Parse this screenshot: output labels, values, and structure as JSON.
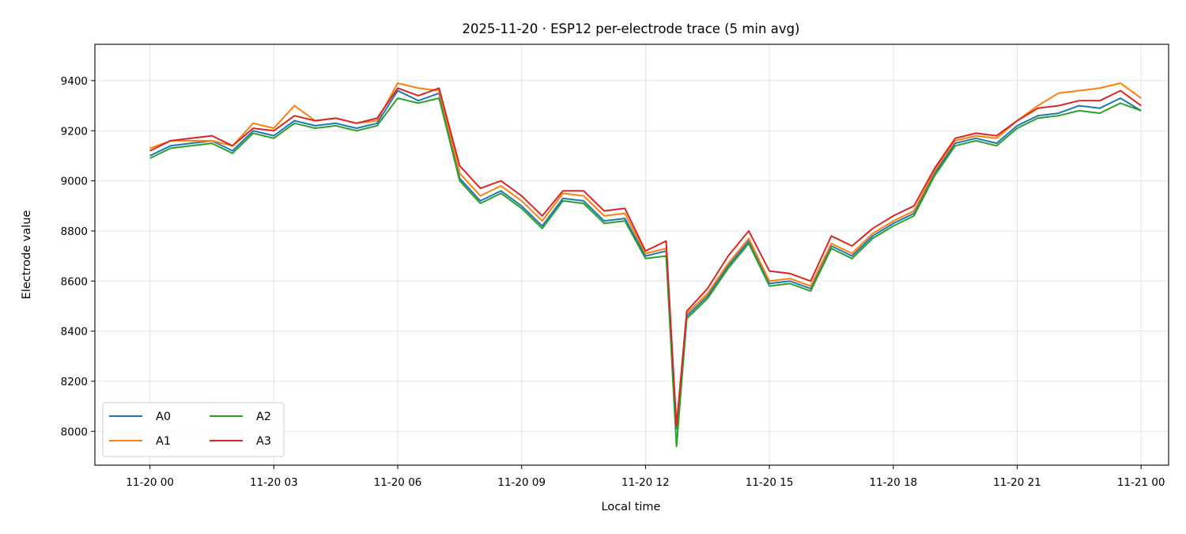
{
  "chart_data": {
    "type": "line",
    "title": "2025-11-20 · ESP12 per-electrode trace (5 min avg)",
    "xlabel": "Local time",
    "ylabel": "Electrode value",
    "xlim": [
      "2025-11-19 22:40",
      "2025-11-21 00:40"
    ],
    "ylim": [
      7865,
      9545
    ],
    "yticks": [
      8000,
      8200,
      8400,
      8600,
      8800,
      9000,
      9200,
      9400
    ],
    "xticks": [
      {
        "t": "2025-11-20 00:00",
        "label": "11-20 00"
      },
      {
        "t": "2025-11-20 03:00",
        "label": "11-20 03"
      },
      {
        "t": "2025-11-20 06:00",
        "label": "11-20 06"
      },
      {
        "t": "2025-11-20 09:00",
        "label": "11-20 09"
      },
      {
        "t": "2025-11-20 12:00",
        "label": "11-20 12"
      },
      {
        "t": "2025-11-20 15:00",
        "label": "11-20 15"
      },
      {
        "t": "2025-11-20 18:00",
        "label": "11-20 18"
      },
      {
        "t": "2025-11-20 21:00",
        "label": "11-20 21"
      },
      {
        "t": "2025-11-21 00:00",
        "label": "11-21 00"
      }
    ],
    "grid": true,
    "legend": {
      "placement": "lower-left",
      "columns": 2
    },
    "x": [
      "2025-11-20 00:00",
      "2025-11-20 00:30",
      "2025-11-20 01:00",
      "2025-11-20 01:30",
      "2025-11-20 02:00",
      "2025-11-20 02:30",
      "2025-11-20 03:00",
      "2025-11-20 03:30",
      "2025-11-20 04:00",
      "2025-11-20 04:30",
      "2025-11-20 05:00",
      "2025-11-20 05:30",
      "2025-11-20 06:00",
      "2025-11-20 06:30",
      "2025-11-20 07:00",
      "2025-11-20 07:30",
      "2025-11-20 08:00",
      "2025-11-20 08:30",
      "2025-11-20 09:00",
      "2025-11-20 09:30",
      "2025-11-20 10:00",
      "2025-11-20 10:30",
      "2025-11-20 11:00",
      "2025-11-20 11:30",
      "2025-11-20 12:00",
      "2025-11-20 12:30",
      "2025-11-20 12:45",
      "2025-11-20 13:00",
      "2025-11-20 13:30",
      "2025-11-20 14:00",
      "2025-11-20 14:30",
      "2025-11-20 15:00",
      "2025-11-20 15:30",
      "2025-11-20 16:00",
      "2025-11-20 16:30",
      "2025-11-20 17:00",
      "2025-11-20 17:30",
      "2025-11-20 18:00",
      "2025-11-20 18:30",
      "2025-11-20 19:00",
      "2025-11-20 19:30",
      "2025-11-20 20:00",
      "2025-11-20 20:30",
      "2025-11-20 21:00",
      "2025-11-20 21:30",
      "2025-11-20 22:00",
      "2025-11-20 22:30",
      "2025-11-20 23:00",
      "2025-11-20 23:30",
      "2025-11-21 00:00"
    ],
    "series": [
      {
        "name": "A0",
        "color": "#1f77b4",
        "values": [
          9100,
          9140,
          9150,
          9160,
          9120,
          9200,
          9180,
          9240,
          9220,
          9230,
          9210,
          9230,
          9360,
          9320,
          9350,
          9010,
          8920,
          8960,
          8900,
          8820,
          8930,
          8920,
          8840,
          8850,
          8700,
          8720,
          8010,
          8460,
          8540,
          8660,
          8760,
          8590,
          8600,
          8570,
          8740,
          8700,
          8780,
          8830,
          8870,
          9030,
          9150,
          9170,
          9150,
          9220,
          9260,
          9270,
          9300,
          9290,
          9330,
          9280
        ]
      },
      {
        "name": "A1",
        "color": "#ff7f0e",
        "values": [
          9130,
          9160,
          9160,
          9160,
          9140,
          9230,
          9210,
          9300,
          9240,
          9250,
          9230,
          9240,
          9390,
          9370,
          9360,
          9030,
          8940,
          8980,
          8920,
          8840,
          8950,
          8940,
          8860,
          8870,
          8710,
          8730,
          8020,
          8470,
          8550,
          8670,
          8770,
          8600,
          8610,
          8580,
          8750,
          8710,
          8790,
          8840,
          8880,
          9040,
          9160,
          9180,
          9170,
          9240,
          9300,
          9350,
          9360,
          9370,
          9390,
          9330
        ]
      },
      {
        "name": "A2",
        "color": "#2ca02c",
        "values": [
          9090,
          9130,
          9140,
          9150,
          9110,
          9190,
          9170,
          9230,
          9210,
          9220,
          9200,
          9220,
          9330,
          9310,
          9330,
          9000,
          8910,
          8950,
          8890,
          8810,
          8920,
          8910,
          8830,
          8840,
          8690,
          8700,
          7940,
          8450,
          8530,
          8650,
          8750,
          8580,
          8590,
          8560,
          8730,
          8690,
          8770,
          8820,
          8860,
          9020,
          9140,
          9160,
          9140,
          9210,
          9250,
          9260,
          9280,
          9270,
          9310,
          9280
        ]
      },
      {
        "name": "A3",
        "color": "#d62728",
        "values": [
          9120,
          9160,
          9170,
          9180,
          9140,
          9210,
          9200,
          9260,
          9240,
          9250,
          9230,
          9250,
          9370,
          9340,
          9370,
          9060,
          8970,
          9000,
          8940,
          8860,
          8960,
          8960,
          8880,
          8890,
          8720,
          8760,
          8020,
          8480,
          8570,
          8700,
          8800,
          8640,
          8630,
          8600,
          8780,
          8740,
          8810,
          8860,
          8900,
          9050,
          9170,
          9190,
          9180,
          9240,
          9290,
          9300,
          9320,
          9320,
          9360,
          9300
        ]
      }
    ]
  }
}
